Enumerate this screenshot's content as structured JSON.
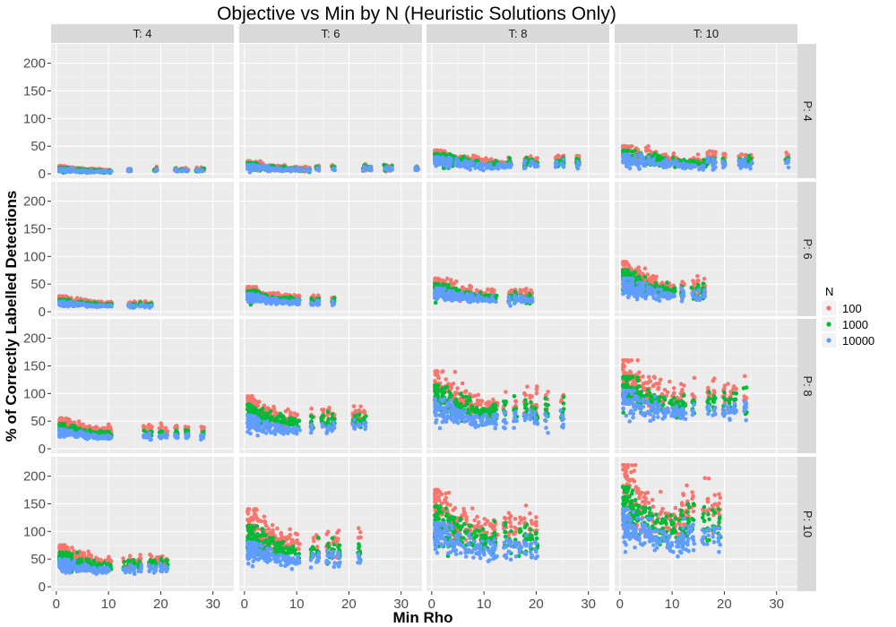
{
  "chart_data": {
    "type": "scatter",
    "title": "Objective vs Min by N (Heuristic Solutions Only)",
    "xlabel": "Min Rho",
    "ylabel": "% of Correctly Labelled Detections",
    "xlim": [
      -1,
      34
    ],
    "ylim": [
      -8,
      235
    ],
    "x_ticks": [
      0,
      10,
      20,
      30
    ],
    "y_ticks": [
      0,
      50,
      100,
      150,
      200
    ],
    "grid": true,
    "facet_cols": [
      "T: 4",
      "T: 6",
      "T: 8",
      "T: 10"
    ],
    "facet_rows": [
      "P: 4",
      "P: 6",
      "P: 8",
      "P: 10"
    ],
    "legend": {
      "title": "N",
      "position": "right",
      "entries": [
        {
          "name": "100",
          "color": "#F8766D"
        },
        {
          "name": "1000",
          "color": "#00BA38"
        },
        {
          "name": "10000",
          "color": "#619CFF"
        }
      ]
    },
    "series_colors": {
      "100": "#F8766D",
      "1000": "#00BA38",
      "10000": "#619CFF"
    },
    "panels": [
      {
        "row": 0,
        "col": 0,
        "xmax": 10,
        "outliers": [
          14,
          19,
          23,
          24,
          25,
          27,
          28
        ],
        "y": {
          "100": [
            14,
            2,
            8
          ],
          "1000": [
            11,
            1,
            7
          ],
          "10000": [
            9,
            1,
            6
          ]
        }
      },
      {
        "row": 0,
        "col": 1,
        "xmax": 12,
        "outliers": [
          14,
          17,
          23,
          24,
          27,
          28,
          33
        ],
        "y": {
          "100": [
            23,
            3,
            12
          ],
          "1000": [
            19,
            2,
            10
          ],
          "10000": [
            16,
            2,
            9
          ]
        }
      },
      {
        "row": 0,
        "col": 2,
        "xmax": 14,
        "outliers": [
          15,
          18,
          19,
          20,
          24,
          25,
          28
        ],
        "y": {
          "100": [
            42,
            10,
            25
          ],
          "1000": [
            36,
            7,
            20
          ],
          "10000": [
            30,
            5,
            16
          ]
        }
      },
      {
        "row": 0,
        "col": 3,
        "xmax": 16,
        "outliers": [
          17,
          18,
          20,
          23,
          24,
          25,
          32
        ],
        "y": {
          "100": [
            50,
            10,
            30
          ],
          "1000": [
            42,
            7,
            24
          ],
          "10000": [
            35,
            5,
            18
          ]
        }
      },
      {
        "row": 1,
        "col": 0,
        "xmax": 10,
        "outliers": [
          14,
          15,
          16,
          17,
          18
        ],
        "y": {
          "100": [
            28,
            10,
            15
          ],
          "1000": [
            22,
            8,
            12
          ],
          "10000": [
            18,
            7,
            10
          ]
        }
      },
      {
        "row": 1,
        "col": 1,
        "xmax": 10,
        "outliers": [
          13,
          14,
          17
        ],
        "y": {
          "100": [
            45,
            15,
            24
          ],
          "1000": [
            38,
            12,
            20
          ],
          "10000": [
            32,
            10,
            16
          ]
        }
      },
      {
        "row": 1,
        "col": 2,
        "xmax": 12,
        "outliers": [
          15,
          16,
          17,
          18,
          19
        ],
        "y": {
          "100": [
            60,
            18,
            32
          ],
          "1000": [
            50,
            15,
            26
          ],
          "10000": [
            42,
            12,
            22
          ]
        }
      },
      {
        "row": 1,
        "col": 3,
        "xmax": 10,
        "outliers": [
          12,
          14,
          15,
          16
        ],
        "y": {
          "100": [
            90,
            25,
            45
          ],
          "1000": [
            75,
            20,
            35
          ],
          "10000": [
            60,
            15,
            30
          ]
        }
      },
      {
        "row": 2,
        "col": 0,
        "xmax": 10,
        "outliers": [
          10,
          17,
          18,
          20,
          21,
          23,
          25,
          28
        ],
        "y": {
          "100": [
            55,
            22,
            35
          ],
          "1000": [
            45,
            18,
            28
          ],
          "10000": [
            35,
            15,
            22
          ]
        }
      },
      {
        "row": 2,
        "col": 1,
        "xmax": 10,
        "outliers": [
          13,
          15,
          16,
          17,
          21,
          22,
          23
        ],
        "y": {
          "100": [
            95,
            35,
            60
          ],
          "1000": [
            80,
            30,
            50
          ],
          "10000": [
            60,
            20,
            40
          ]
        }
      },
      {
        "row": 2,
        "col": 2,
        "xmax": 12,
        "outliers": [
          12,
          14,
          16,
          18,
          19,
          20,
          22,
          25
        ],
        "y": {
          "100": [
            140,
            45,
            85
          ],
          "1000": [
            115,
            40,
            70
          ],
          "10000": [
            90,
            30,
            55
          ]
        }
      },
      {
        "row": 2,
        "col": 3,
        "xmax": 12,
        "outliers": [
          12,
          14,
          17,
          18,
          20,
          21,
          22,
          24
        ],
        "y": {
          "100": [
            160,
            60,
            100
          ],
          "1000": [
            130,
            50,
            85
          ],
          "10000": [
            105,
            45,
            70
          ]
        }
      },
      {
        "row": 3,
        "col": 0,
        "xmax": 10,
        "outliers": [
          13,
          14,
          15,
          16,
          18,
          19,
          20,
          21
        ],
        "y": {
          "100": [
            75,
            30,
            45
          ],
          "1000": [
            62,
            25,
            40
          ],
          "10000": [
            50,
            20,
            32
          ]
        }
      },
      {
        "row": 3,
        "col": 1,
        "xmax": 10,
        "outliers": [
          13,
          14,
          16,
          17,
          18,
          22
        ],
        "y": {
          "100": [
            140,
            50,
            80
          ],
          "1000": [
            110,
            40,
            65
          ],
          "10000": [
            80,
            30,
            50
          ]
        }
      },
      {
        "row": 3,
        "col": 2,
        "xmax": 12,
        "outliers": [
          12,
          14,
          15,
          16,
          17,
          18,
          19,
          20
        ],
        "y": {
          "100": [
            175,
            60,
            110
          ],
          "1000": [
            145,
            50,
            90
          ],
          "10000": [
            115,
            40,
            70
          ]
        }
      },
      {
        "row": 3,
        "col": 3,
        "xmax": 12,
        "outliers": [
          12,
          13,
          14,
          16,
          17,
          18,
          19
        ],
        "y": {
          "100": [
            220,
            70,
            140
          ],
          "1000": [
            180,
            60,
            115
          ],
          "10000": [
            140,
            50,
            90
          ]
        }
      }
    ]
  }
}
